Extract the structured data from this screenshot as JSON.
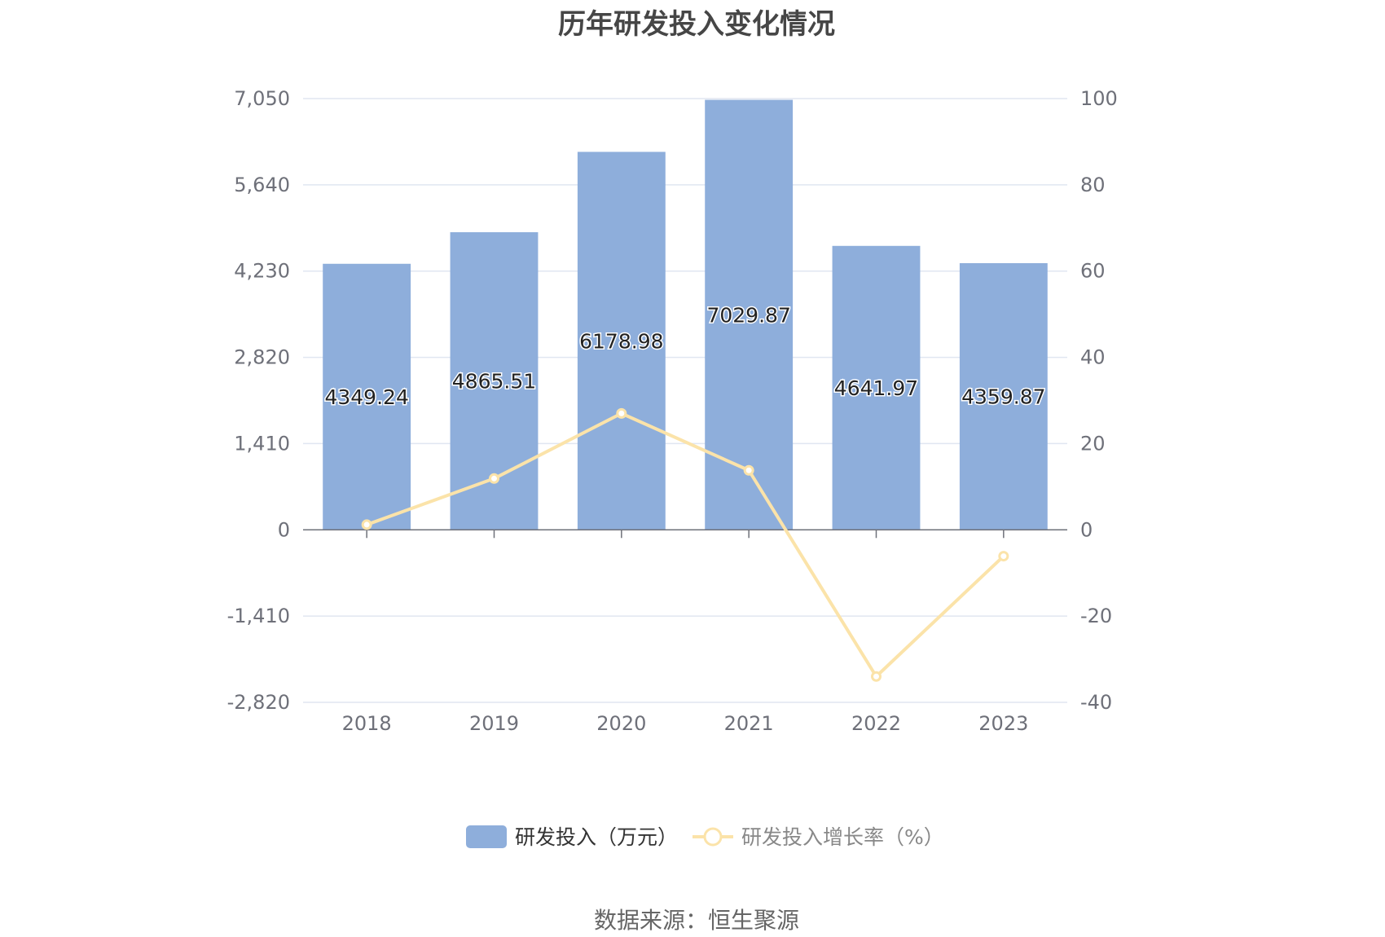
{
  "title": "历年研发投入变化情况",
  "source": "数据来源：恒生聚源",
  "chart_data": {
    "type": "bar",
    "categories": [
      "2018",
      "2019",
      "2020",
      "2021",
      "2022",
      "2023"
    ],
    "series": [
      {
        "name": "研发投入（万元）",
        "type": "bar",
        "axis": "left",
        "color": "#8eaedb",
        "values": [
          4349.24,
          4865.51,
          6178.98,
          7029.87,
          4641.97,
          4359.87
        ],
        "labels": [
          "4349.24",
          "4865.51",
          "6178.98",
          "7029.87",
          "4641.97",
          "4359.87"
        ]
      },
      {
        "name": "研发投入增长率（%）",
        "type": "line",
        "axis": "right",
        "color": "#fbe3a9",
        "values": [
          1.2,
          11.9,
          27.0,
          13.8,
          -34.0,
          -6.1
        ]
      }
    ],
    "left_axis": {
      "min": -2820,
      "max": 7050,
      "ticks": [
        -2820,
        -1410,
        0,
        1410,
        2820,
        4230,
        5640,
        7050
      ],
      "tick_labels": [
        "-2,820",
        "-1,410",
        "0",
        "1,410",
        "2,820",
        "4,230",
        "5,640",
        "7,050"
      ]
    },
    "right_axis": {
      "min": -40,
      "max": 100,
      "ticks": [
        -40,
        -20,
        0,
        20,
        40,
        60,
        80,
        100
      ],
      "tick_labels": [
        "-40",
        "-20",
        "0",
        "20",
        "40",
        "60",
        "80",
        "100"
      ]
    },
    "grid": true,
    "legend_position": "bottom-center"
  }
}
